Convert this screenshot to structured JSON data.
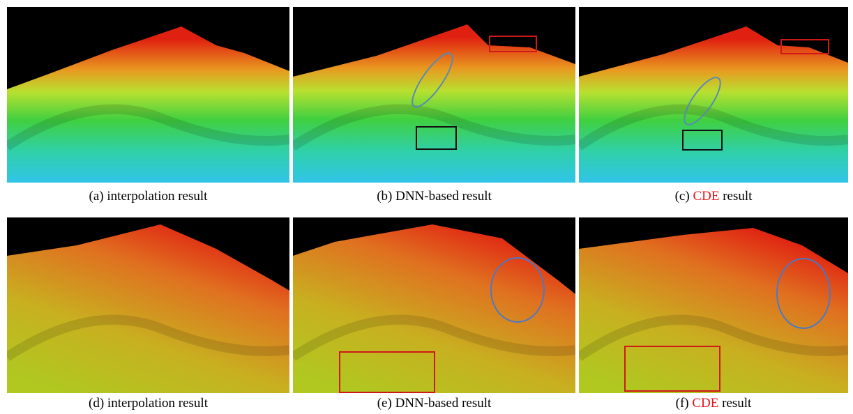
{
  "panels": [
    {
      "label": "(a)",
      "caption": "interpolation result"
    },
    {
      "label": "(b)",
      "caption": "DNN-based result"
    },
    {
      "label": "(c)",
      "method": "CDE",
      "caption": "result"
    },
    {
      "label": "(d)",
      "caption": "interpolation result"
    },
    {
      "label": "(e)",
      "caption": "DNN-based result"
    },
    {
      "label": "(f)",
      "method": "CDE",
      "caption": "result"
    }
  ]
}
